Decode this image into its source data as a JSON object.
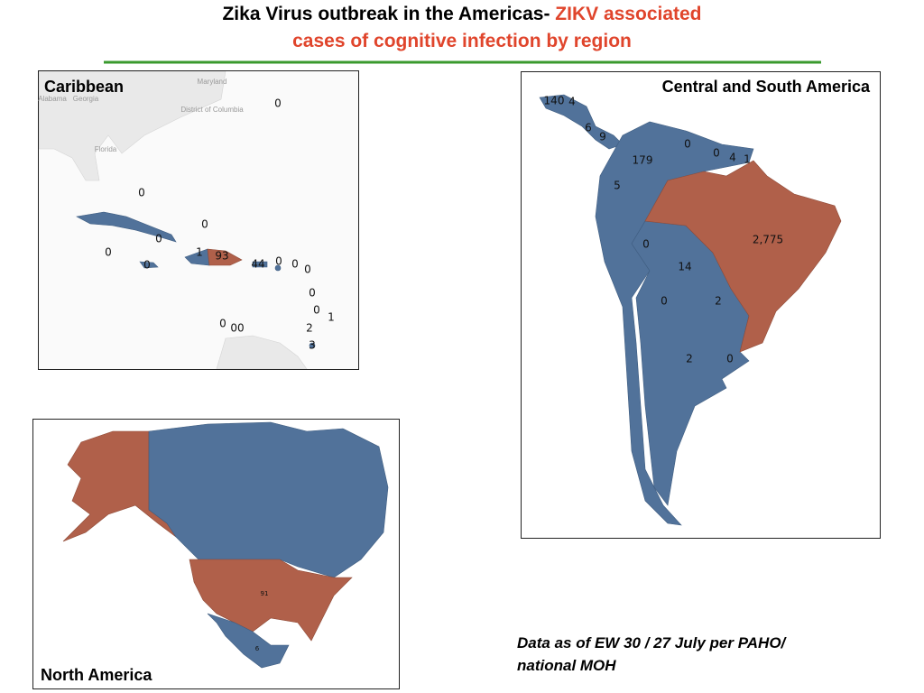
{
  "title": {
    "text": "Zika Virus outbreak in the Americas- ",
    "highlight": "ZIKV associated",
    "line2": "cases of cognitive infection by region"
  },
  "panels": [
    {
      "name": "Caribbean",
      "labels": [
        "0",
        "0",
        "0",
        "0",
        "0",
        "1",
        "93",
        "0",
        "44",
        "0",
        "0",
        "0",
        "0",
        "0",
        "1",
        "0",
        "00",
        "2",
        "3"
      ]
    },
    {
      "name": "Central and South America",
      "labels": [
        "140",
        "4",
        "6",
        "9",
        "0",
        "179",
        "0",
        "4",
        "1",
        "5",
        "2,775",
        "0",
        "14",
        "0",
        "2",
        "2",
        "0"
      ]
    },
    {
      "name": "North America",
      "labels": [
        "91",
        "6"
      ]
    }
  ],
  "basemap_labels": [
    "Maryland",
    "Alabama",
    "Georgia",
    "District of Columbia",
    "Florida"
  ],
  "footnote": [
    "Data as of EW 30 / 27 July per PAHO/",
    "national MOH"
  ]
}
